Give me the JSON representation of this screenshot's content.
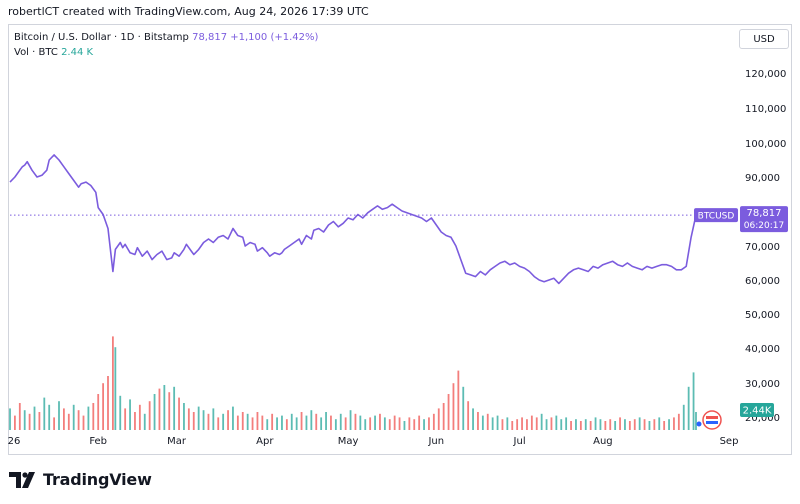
{
  "header": {
    "credit": "robertlCT created with TradingView.com, Aug 24, 2026 17:39 UTC"
  },
  "legend": {
    "symbol_line": "Bitcoin / U.S. Dollar · 1D · Bitstamp",
    "price": "78,817",
    "change": "+1,100 (+1.42%)",
    "vol_label": "Vol · BTC",
    "vol_value": "2.44 K"
  },
  "currency": "USD",
  "footer": {
    "brand": "TradingView"
  },
  "price_tag": {
    "symbol": "BTCUSD",
    "price": "78,817",
    "countdown": "06:20:17"
  },
  "volume_tag": "2.44K",
  "colors": {
    "line": "#7b5cde",
    "vol_up": "#26a69a",
    "vol_down": "#ef5350",
    "grid": "#f0f3fa",
    "tag_bg": "#7b5cde"
  },
  "chart_data": {
    "type": "line",
    "series": [
      {
        "name": "BTCUSD",
        "values": [
          [
            0,
            88500
          ],
          [
            2,
            90000
          ],
          [
            4,
            92000
          ],
          [
            5,
            93000
          ],
          [
            6,
            93500
          ],
          [
            7,
            94500
          ],
          [
            9,
            92000
          ],
          [
            11,
            90000
          ],
          [
            13,
            90500
          ],
          [
            15,
            92000
          ],
          [
            16,
            95000
          ],
          [
            18,
            96500
          ],
          [
            20,
            95000
          ],
          [
            22,
            93000
          ],
          [
            24,
            91000
          ],
          [
            26,
            89000
          ],
          [
            28,
            87000
          ],
          [
            29,
            88000
          ],
          [
            31,
            88500
          ],
          [
            33,
            87500
          ],
          [
            35,
            85500
          ],
          [
            36,
            81000
          ],
          [
            38,
            79000
          ],
          [
            40,
            75000
          ],
          [
            42,
            62500
          ],
          [
            43,
            69000
          ],
          [
            45,
            71000
          ],
          [
            46,
            69500
          ],
          [
            47,
            70500
          ],
          [
            49,
            68000
          ],
          [
            51,
            67500
          ],
          [
            52,
            69500
          ],
          [
            54,
            67000
          ],
          [
            56,
            68500
          ],
          [
            58,
            66000
          ],
          [
            60,
            67500
          ],
          [
            62,
            68500
          ],
          [
            64,
            66000
          ],
          [
            66,
            66500
          ],
          [
            67,
            68000
          ],
          [
            69,
            67000
          ],
          [
            71,
            69000
          ],
          [
            72,
            70500
          ],
          [
            74,
            68500
          ],
          [
            75,
            67500
          ],
          [
            77,
            69000
          ],
          [
            79,
            71000
          ],
          [
            81,
            72000
          ],
          [
            83,
            71000
          ],
          [
            85,
            72500
          ],
          [
            87,
            73000
          ],
          [
            89,
            72000
          ],
          [
            90,
            73500
          ],
          [
            91,
            75000
          ],
          [
            93,
            73000
          ],
          [
            95,
            72500
          ],
          [
            96,
            70000
          ],
          [
            98,
            71000
          ],
          [
            100,
            70500
          ],
          [
            101,
            68500
          ],
          [
            103,
            69500
          ],
          [
            105,
            68000
          ],
          [
            106,
            67000
          ],
          [
            108,
            68000
          ],
          [
            110,
            67500
          ],
          [
            111,
            68000
          ],
          [
            112,
            69000
          ],
          [
            114,
            70000
          ],
          [
            116,
            71000
          ],
          [
            118,
            72000
          ],
          [
            119,
            70500
          ],
          [
            121,
            73000
          ],
          [
            123,
            72000
          ],
          [
            124,
            74500
          ],
          [
            126,
            75000
          ],
          [
            128,
            74000
          ],
          [
            130,
            76000
          ],
          [
            132,
            77000
          ],
          [
            134,
            75500
          ],
          [
            136,
            76500
          ],
          [
            138,
            78000
          ],
          [
            140,
            77500
          ],
          [
            142,
            79000
          ],
          [
            144,
            78000
          ],
          [
            146,
            79500
          ],
          [
            148,
            80500
          ],
          [
            150,
            81500
          ],
          [
            152,
            80500
          ],
          [
            154,
            81000
          ],
          [
            156,
            82000
          ],
          [
            158,
            81000
          ],
          [
            160,
            80000
          ],
          [
            162,
            79500
          ],
          [
            164,
            79000
          ],
          [
            166,
            78500
          ],
          [
            168,
            78000
          ],
          [
            170,
            77000
          ],
          [
            172,
            78000
          ],
          [
            174,
            76000
          ],
          [
            176,
            74000
          ],
          [
            178,
            73000
          ],
          [
            180,
            72500
          ],
          [
            182,
            70000
          ],
          [
            184,
            66000
          ],
          [
            186,
            62000
          ],
          [
            188,
            61500
          ],
          [
            190,
            61000
          ],
          [
            192,
            62500
          ],
          [
            194,
            61500
          ],
          [
            196,
            63000
          ],
          [
            198,
            64000
          ],
          [
            200,
            65000
          ],
          [
            202,
            65500
          ],
          [
            204,
            64500
          ],
          [
            206,
            65000
          ],
          [
            208,
            64000
          ],
          [
            210,
            63500
          ],
          [
            212,
            62500
          ],
          [
            214,
            61000
          ],
          [
            216,
            60000
          ],
          [
            218,
            59500
          ],
          [
            220,
            60000
          ],
          [
            222,
            60500
          ],
          [
            224,
            59000
          ],
          [
            226,
            60500
          ],
          [
            228,
            62000
          ],
          [
            230,
            63000
          ],
          [
            232,
            63500
          ],
          [
            234,
            63000
          ],
          [
            236,
            62500
          ],
          [
            238,
            64000
          ],
          [
            240,
            63500
          ],
          [
            242,
            64500
          ],
          [
            244,
            65000
          ],
          [
            246,
            65500
          ],
          [
            248,
            64500
          ],
          [
            250,
            64000
          ],
          [
            252,
            65000
          ],
          [
            254,
            64000
          ],
          [
            256,
            63500
          ],
          [
            258,
            63000
          ],
          [
            260,
            64000
          ],
          [
            262,
            63500
          ],
          [
            264,
            64000
          ],
          [
            266,
            64500
          ],
          [
            268,
            64500
          ],
          [
            270,
            64000
          ],
          [
            272,
            63000
          ],
          [
            274,
            63000
          ],
          [
            276,
            64000
          ],
          [
            278,
            72500
          ],
          [
            280,
            78817
          ]
        ]
      }
    ],
    "volume": {
      "description": "daily volume bars (BTC)",
      "values": [
        [
          0,
          1.2,
          "u"
        ],
        [
          2,
          0.8,
          "d"
        ],
        [
          4,
          1.5,
          "d"
        ],
        [
          6,
          1.1,
          "u"
        ],
        [
          8,
          0.9,
          "d"
        ],
        [
          10,
          1.3,
          "u"
        ],
        [
          12,
          1.0,
          "d"
        ],
        [
          14,
          1.8,
          "u"
        ],
        [
          16,
          1.4,
          "u"
        ],
        [
          18,
          0.7,
          "d"
        ],
        [
          20,
          1.6,
          "u"
        ],
        [
          22,
          1.2,
          "d"
        ],
        [
          24,
          0.9,
          "d"
        ],
        [
          26,
          1.4,
          "u"
        ],
        [
          28,
          1.1,
          "d"
        ],
        [
          30,
          0.8,
          "d"
        ],
        [
          32,
          1.3,
          "u"
        ],
        [
          34,
          1.5,
          "d"
        ],
        [
          36,
          2.0,
          "d"
        ],
        [
          38,
          2.6,
          "d"
        ],
        [
          40,
          3.0,
          "d"
        ],
        [
          42,
          5.2,
          "d"
        ],
        [
          43,
          4.6,
          "u"
        ],
        [
          45,
          1.9,
          "u"
        ],
        [
          47,
          1.2,
          "d"
        ],
        [
          49,
          1.7,
          "u"
        ],
        [
          51,
          1.0,
          "d"
        ],
        [
          53,
          1.4,
          "d"
        ],
        [
          55,
          0.9,
          "u"
        ],
        [
          57,
          1.6,
          "d"
        ],
        [
          59,
          2.0,
          "u"
        ],
        [
          61,
          2.3,
          "d"
        ],
        [
          63,
          2.5,
          "u"
        ],
        [
          65,
          2.1,
          "d"
        ],
        [
          67,
          2.4,
          "u"
        ],
        [
          69,
          1.8,
          "d"
        ],
        [
          71,
          1.5,
          "u"
        ],
        [
          73,
          1.2,
          "d"
        ],
        [
          75,
          1.0,
          "d"
        ],
        [
          77,
          1.3,
          "u"
        ],
        [
          79,
          1.1,
          "u"
        ],
        [
          81,
          0.9,
          "d"
        ],
        [
          83,
          1.2,
          "u"
        ],
        [
          85,
          0.7,
          "d"
        ],
        [
          87,
          0.9,
          "u"
        ],
        [
          89,
          1.1,
          "d"
        ],
        [
          91,
          1.3,
          "u"
        ],
        [
          93,
          0.8,
          "d"
        ],
        [
          95,
          1.0,
          "d"
        ],
        [
          97,
          0.9,
          "u"
        ],
        [
          99,
          0.7,
          "d"
        ],
        [
          101,
          1.0,
          "d"
        ],
        [
          103,
          0.8,
          "d"
        ],
        [
          105,
          0.6,
          "u"
        ],
        [
          107,
          0.9,
          "d"
        ],
        [
          109,
          0.7,
          "u"
        ],
        [
          111,
          0.8,
          "u"
        ],
        [
          113,
          0.6,
          "d"
        ],
        [
          115,
          0.9,
          "u"
        ],
        [
          117,
          0.7,
          "u"
        ],
        [
          119,
          1.0,
          "d"
        ],
        [
          121,
          0.8,
          "u"
        ],
        [
          123,
          1.1,
          "u"
        ],
        [
          125,
          0.9,
          "d"
        ],
        [
          127,
          0.7,
          "u"
        ],
        [
          129,
          1.0,
          "u"
        ],
        [
          131,
          0.8,
          "d"
        ],
        [
          133,
          0.6,
          "u"
        ],
        [
          135,
          0.9,
          "u"
        ],
        [
          137,
          0.7,
          "d"
        ],
        [
          139,
          1.1,
          "u"
        ],
        [
          141,
          0.9,
          "d"
        ],
        [
          143,
          0.8,
          "u"
        ],
        [
          145,
          0.6,
          "u"
        ],
        [
          147,
          0.7,
          "d"
        ],
        [
          149,
          0.8,
          "u"
        ],
        [
          151,
          0.9,
          "d"
        ],
        [
          153,
          0.7,
          "u"
        ],
        [
          155,
          0.6,
          "d"
        ],
        [
          157,
          0.8,
          "d"
        ],
        [
          159,
          0.7,
          "d"
        ],
        [
          161,
          0.5,
          "u"
        ],
        [
          163,
          0.7,
          "d"
        ],
        [
          165,
          0.6,
          "d"
        ],
        [
          167,
          0.8,
          "d"
        ],
        [
          169,
          0.6,
          "u"
        ],
        [
          171,
          0.7,
          "d"
        ],
        [
          173,
          0.9,
          "d"
        ],
        [
          175,
          1.2,
          "d"
        ],
        [
          177,
          1.5,
          "d"
        ],
        [
          179,
          2.0,
          "d"
        ],
        [
          181,
          2.6,
          "d"
        ],
        [
          183,
          3.3,
          "d"
        ],
        [
          185,
          2.4,
          "u"
        ],
        [
          187,
          1.6,
          "d"
        ],
        [
          189,
          1.2,
          "u"
        ],
        [
          191,
          1.0,
          "d"
        ],
        [
          193,
          0.8,
          "u"
        ],
        [
          195,
          0.9,
          "d"
        ],
        [
          197,
          0.7,
          "u"
        ],
        [
          199,
          0.8,
          "u"
        ],
        [
          201,
          0.6,
          "d"
        ],
        [
          203,
          0.7,
          "u"
        ],
        [
          205,
          0.5,
          "d"
        ],
        [
          207,
          0.6,
          "d"
        ],
        [
          209,
          0.7,
          "d"
        ],
        [
          211,
          0.6,
          "d"
        ],
        [
          213,
          0.8,
          "d"
        ],
        [
          215,
          0.7,
          "d"
        ],
        [
          217,
          0.9,
          "u"
        ],
        [
          219,
          0.6,
          "u"
        ],
        [
          221,
          0.7,
          "d"
        ],
        [
          223,
          0.8,
          "u"
        ],
        [
          225,
          0.6,
          "u"
        ],
        [
          227,
          0.7,
          "u"
        ],
        [
          229,
          0.5,
          "d"
        ],
        [
          231,
          0.6,
          "u"
        ],
        [
          233,
          0.5,
          "d"
        ],
        [
          235,
          0.6,
          "u"
        ],
        [
          237,
          0.5,
          "d"
        ],
        [
          239,
          0.7,
          "u"
        ],
        [
          241,
          0.6,
          "u"
        ],
        [
          243,
          0.5,
          "d"
        ],
        [
          245,
          0.6,
          "d"
        ],
        [
          247,
          0.5,
          "u"
        ],
        [
          249,
          0.7,
          "d"
        ],
        [
          251,
          0.6,
          "u"
        ],
        [
          253,
          0.5,
          "d"
        ],
        [
          255,
          0.6,
          "d"
        ],
        [
          257,
          0.7,
          "u"
        ],
        [
          259,
          0.6,
          "d"
        ],
        [
          261,
          0.5,
          "u"
        ],
        [
          263,
          0.6,
          "d"
        ],
        [
          265,
          0.7,
          "u"
        ],
        [
          267,
          0.5,
          "d"
        ],
        [
          269,
          0.6,
          "u"
        ],
        [
          271,
          0.7,
          "d"
        ],
        [
          273,
          0.9,
          "d"
        ],
        [
          275,
          1.4,
          "u"
        ],
        [
          277,
          2.4,
          "u"
        ],
        [
          279,
          3.2,
          "u"
        ],
        [
          280,
          1.0,
          "u"
        ]
      ]
    },
    "x_ticks": [
      {
        "label": "26",
        "day": 0
      },
      {
        "label": "Feb",
        "day": 36
      },
      {
        "label": "Mar",
        "day": 68
      },
      {
        "label": "Apr",
        "day": 104
      },
      {
        "label": "May",
        "day": 138
      },
      {
        "label": "Jun",
        "day": 174
      },
      {
        "label": "Jul",
        "day": 208
      },
      {
        "label": "Aug",
        "day": 242
      },
      {
        "label": "Sep",
        "day": 280
      }
    ],
    "y_ticks": [
      "120,000",
      "110,000",
      "100,000",
      "90,000",
      "80,000",
      "70,000",
      "60,000",
      "50,000",
      "40,000",
      "30,000",
      "20,000"
    ],
    "ylim": [
      20000,
      125000
    ],
    "ylabel": "",
    "xlabel": "",
    "grid": false,
    "current_price_line": 78817
  }
}
